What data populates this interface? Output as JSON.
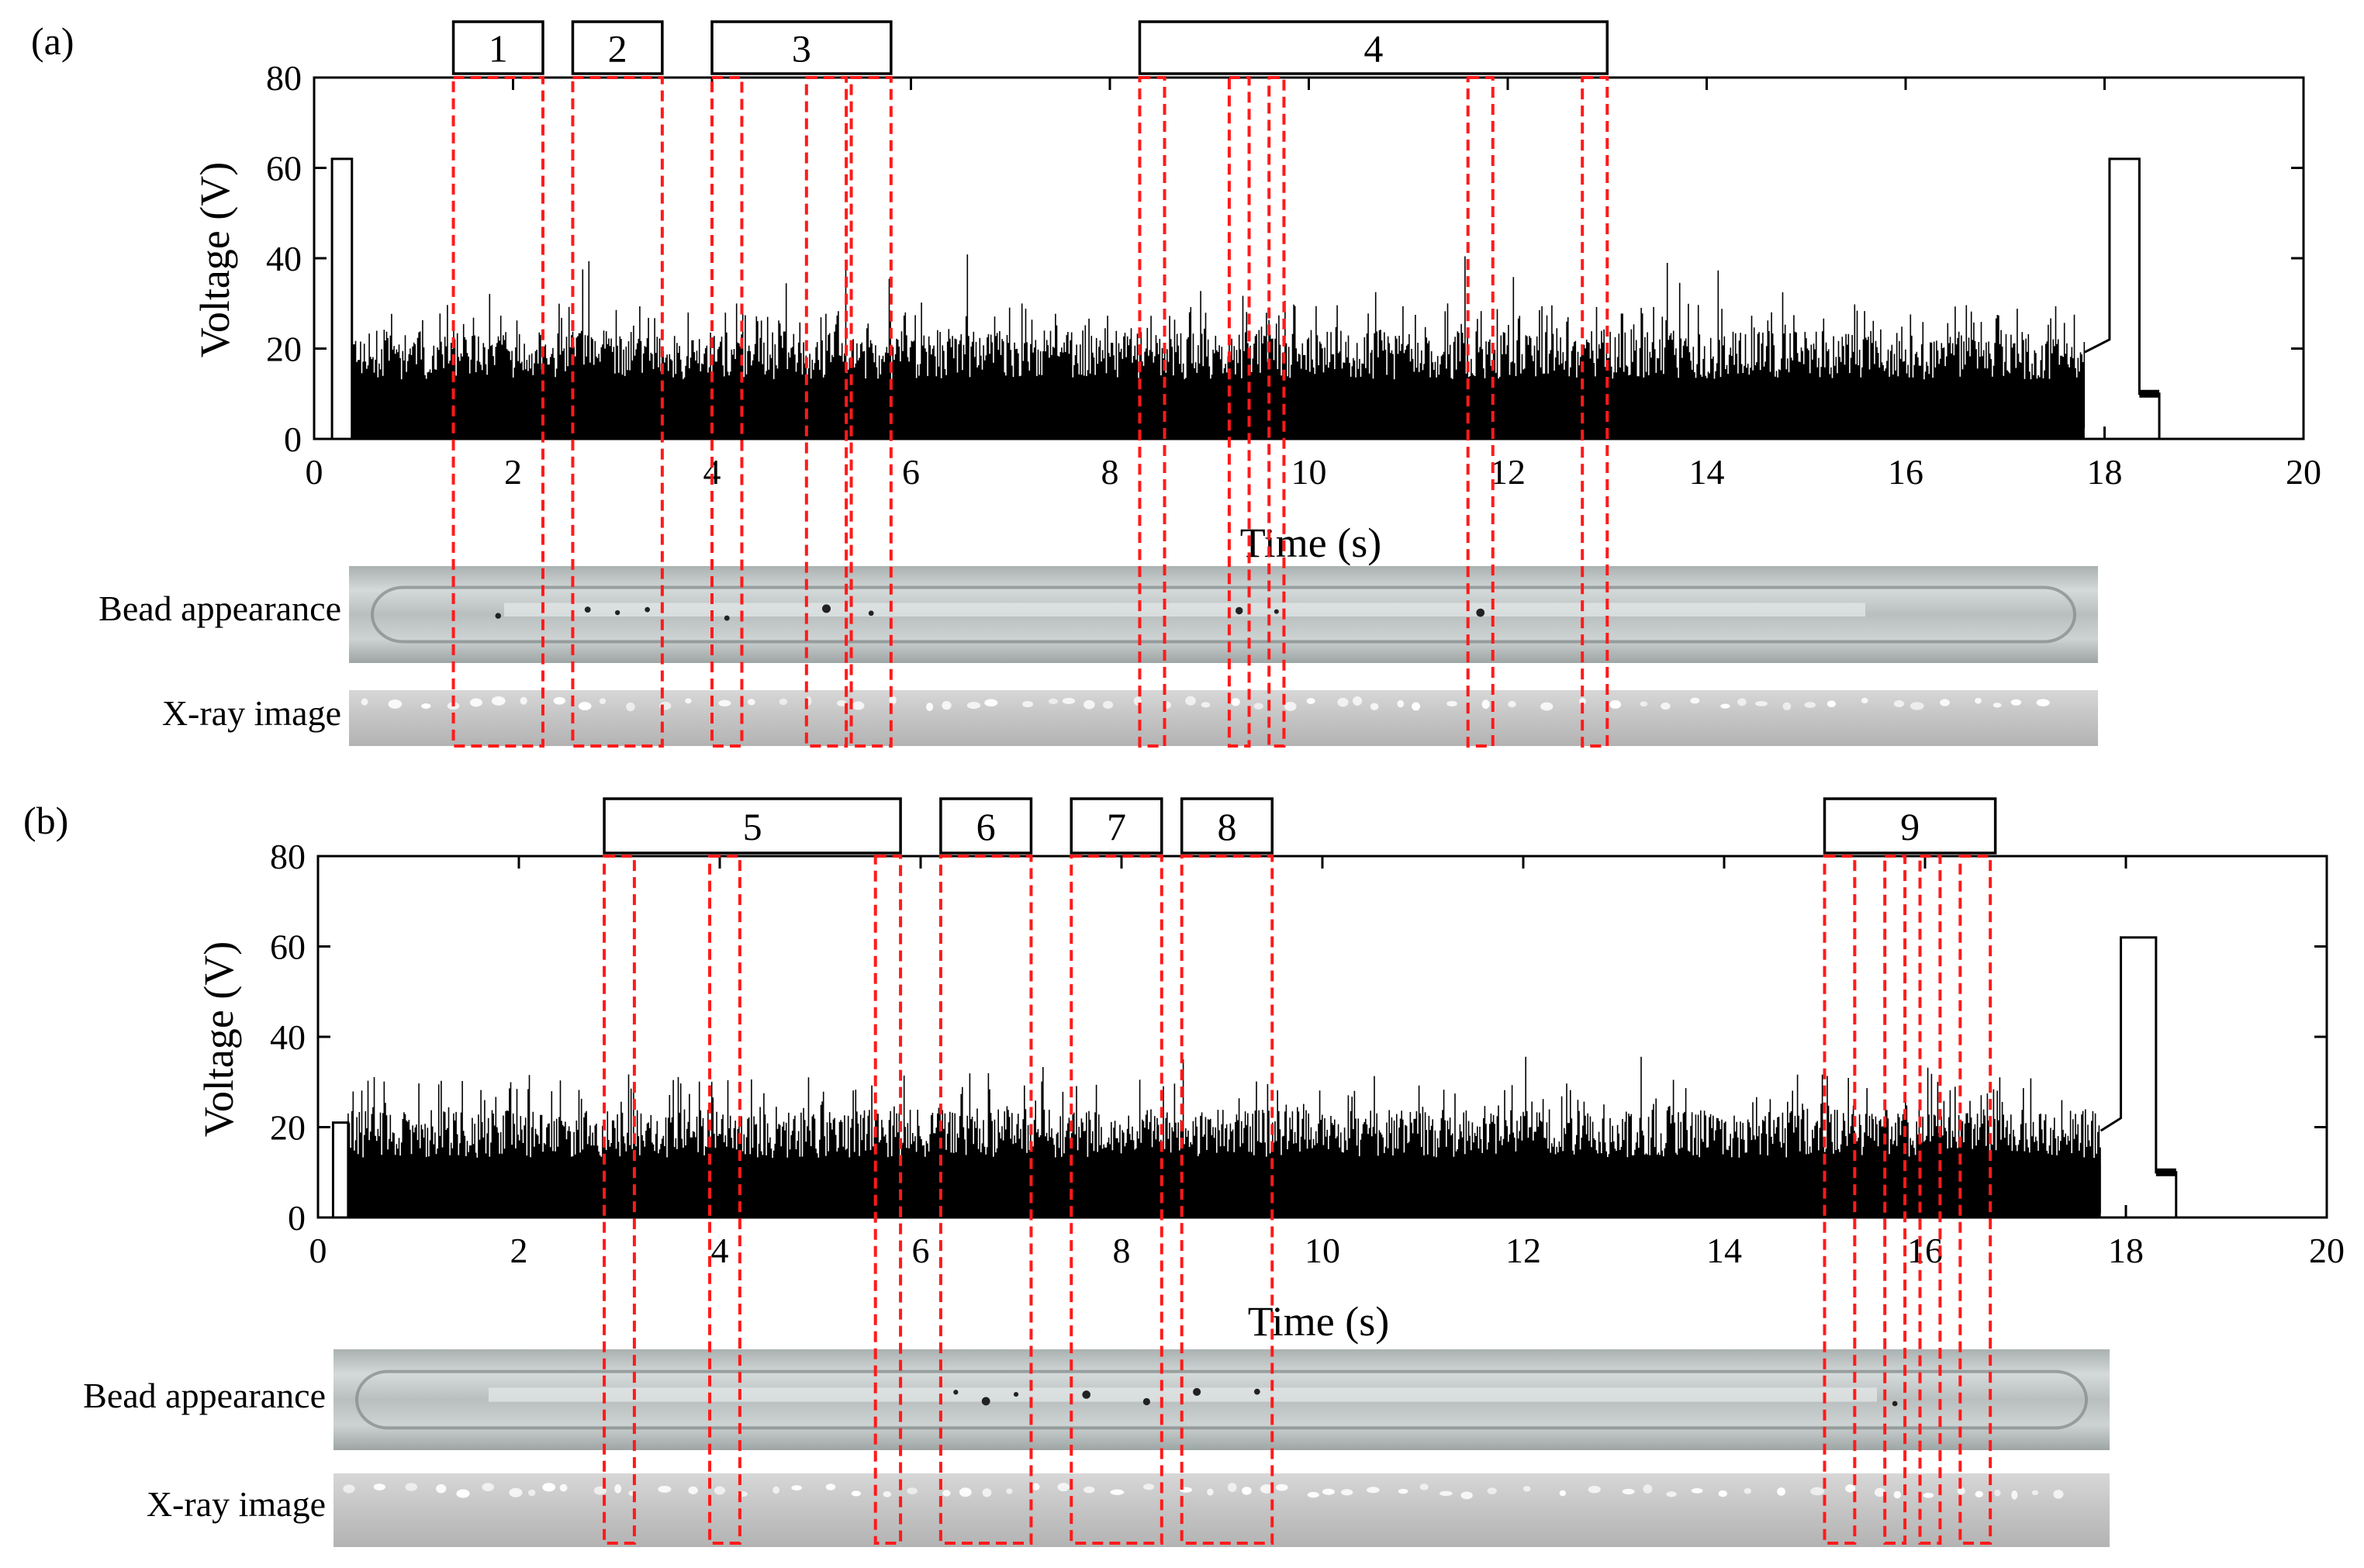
{
  "chart_data": [
    {
      "type": "line",
      "panel_label": "(a)",
      "xlabel": "Time (s)",
      "ylabel": "Voltage (V)",
      "xlim": [
        0,
        20
      ],
      "ylim": [
        0,
        80
      ],
      "x_ticks": [
        "0",
        "2",
        "4",
        "6",
        "8",
        "10",
        "12",
        "14",
        "16",
        "18",
        "20"
      ],
      "y_ticks": [
        "0",
        "20",
        "40",
        "60",
        "80"
      ],
      "grid": false,
      "signal": {
        "arc_start": {
          "t_start": 0.18,
          "t_end": 0.38,
          "voltage": 62
        },
        "welding": {
          "t_start": 0.38,
          "t_end": 17.8,
          "base_voltage": 0,
          "typical_peak": 24,
          "occasional_peak": 30,
          "max_peak": 41
        },
        "arc_end": {
          "t_start": 18.05,
          "t_end": 18.35,
          "voltage": 62
        },
        "crater": {
          "t_start": 18.35,
          "t_end": 18.55,
          "voltage": 10
        }
      },
      "groups": [
        {
          "label": "1",
          "t_start": 1.4,
          "t_end": 2.3
        },
        {
          "label": "2",
          "t_start": 2.6,
          "t_end": 3.5
        },
        {
          "label": "3",
          "t_start": 4.0,
          "t_end": 5.8
        },
        {
          "label": "4",
          "t_start": 8.3,
          "t_end": 13.0
        }
      ],
      "defect_windows": [
        [
          1.4,
          2.3
        ],
        [
          2.6,
          3.5
        ],
        [
          4.0,
          4.3
        ],
        [
          4.95,
          5.35
        ],
        [
          5.4,
          5.8
        ],
        [
          8.3,
          8.55
        ],
        [
          9.2,
          9.4
        ],
        [
          9.6,
          9.75
        ],
        [
          11.6,
          11.85
        ],
        [
          12.75,
          13.0
        ]
      ],
      "image_rows": [
        "Bead appearance",
        "X-ray image"
      ]
    },
    {
      "type": "line",
      "panel_label": "(b)",
      "xlabel": "Time (s)",
      "ylabel": "Voltage (V)",
      "xlim": [
        0,
        20
      ],
      "ylim": [
        0,
        80
      ],
      "x_ticks": [
        "0",
        "2",
        "4",
        "6",
        "8",
        "10",
        "12",
        "14",
        "16",
        "18",
        "20"
      ],
      "y_ticks": [
        "0",
        "20",
        "40",
        "60",
        "80"
      ],
      "grid": false,
      "signal": {
        "arc_start": {
          "t_start": 0.15,
          "t_end": 0.3,
          "voltage": 21
        },
        "welding": {
          "t_start": 0.3,
          "t_end": 17.75,
          "base_voltage": 0,
          "typical_peak": 24,
          "occasional_peak": 32,
          "max_peak": 36
        },
        "arc_end": {
          "t_start": 17.95,
          "t_end": 18.3,
          "voltage": 62
        },
        "crater": {
          "t_start": 18.3,
          "t_end": 18.5,
          "voltage": 10
        }
      },
      "groups": [
        {
          "label": "5",
          "t_start": 2.85,
          "t_end": 5.8
        },
        {
          "label": "6",
          "t_start": 6.2,
          "t_end": 7.1
        },
        {
          "label": "7",
          "t_start": 7.5,
          "t_end": 8.4
        },
        {
          "label": "8",
          "t_start": 8.6,
          "t_end": 9.5
        }
      ],
      "groups_b_extra": [
        {
          "label": "9",
          "t_start": 15.0,
          "t_end": 16.7
        }
      ],
      "defect_windows": [
        [
          2.85,
          3.15
        ],
        [
          3.9,
          4.2
        ],
        [
          5.55,
          5.8
        ],
        [
          6.2,
          7.1
        ],
        [
          7.5,
          8.4
        ],
        [
          8.6,
          9.5
        ],
        [
          15.0,
          15.3
        ],
        [
          15.6,
          15.8
        ],
        [
          15.95,
          16.15
        ],
        [
          16.35,
          16.65
        ]
      ],
      "image_rows": [
        "Bead appearance",
        "X-ray image"
      ]
    }
  ],
  "colors": {
    "signal": "#000000",
    "window": "#ff1a1a",
    "bead_light": "#c9cfcf",
    "bead_mid": "#aeb4b4",
    "bead_dark": "#8f9696",
    "xray": "#c6c6c6",
    "xray_dark": "#b4b4b4"
  }
}
